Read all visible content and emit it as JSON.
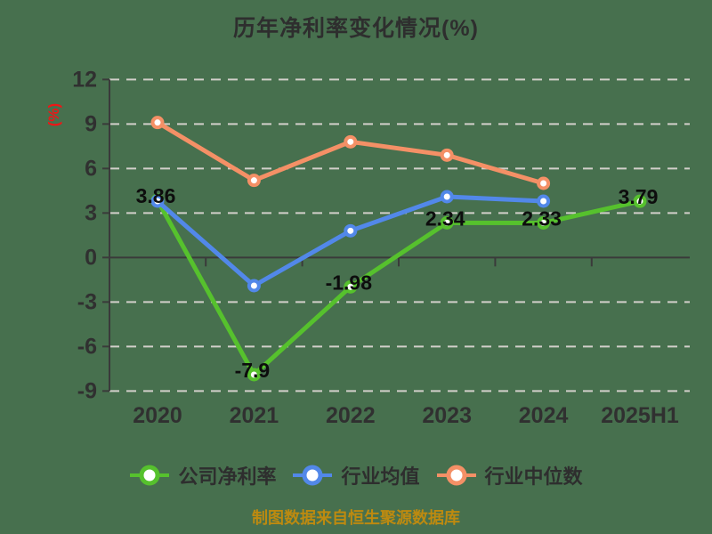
{
  "title": "历年净利率变化情况(%)",
  "y_axis_label": "(%)",
  "footer": "制图数据来自恒生聚源数据库",
  "colors": {
    "background": "#47704e",
    "title_text": "#2e2e2e",
    "axis_text": "#303030",
    "data_label_text": "#0d0d0d",
    "grid_line": "#d2cfca",
    "axis_line": "#3a3a3a",
    "y_axis_label_text": "#ee1616",
    "footer_text": "#bd8a10",
    "marker_fill": "#ffffff"
  },
  "chart_data": {
    "type": "line",
    "title": "历年净利率变化情况(%)",
    "ylabel": "(%)",
    "categories": [
      "2020",
      "2021",
      "2022",
      "2023",
      "2024",
      "2025H1"
    ],
    "ylim": [
      -9,
      12
    ],
    "yticks": [
      12,
      9,
      6,
      3,
      0,
      -3,
      -6,
      -9
    ],
    "grid": "horizontal-dashed",
    "legend_position": "bottom",
    "series": [
      {
        "name": "公司净利率",
        "color": "#56c12d",
        "values": [
          3.86,
          -7.9,
          -1.98,
          2.34,
          2.33,
          3.79
        ],
        "labels": [
          "3.86",
          "-7.9",
          "-1.98",
          "2.34",
          "2.33",
          "3.79"
        ]
      },
      {
        "name": "行业均值",
        "color": "#5288e9",
        "values": [
          3.8,
          -1.9,
          1.8,
          4.1,
          3.8,
          null
        ],
        "labels": null
      },
      {
        "name": "行业中位数",
        "color": "#f49066",
        "values": [
          9.1,
          5.2,
          7.8,
          6.9,
          5.0,
          null
        ],
        "labels": null
      }
    ]
  }
}
